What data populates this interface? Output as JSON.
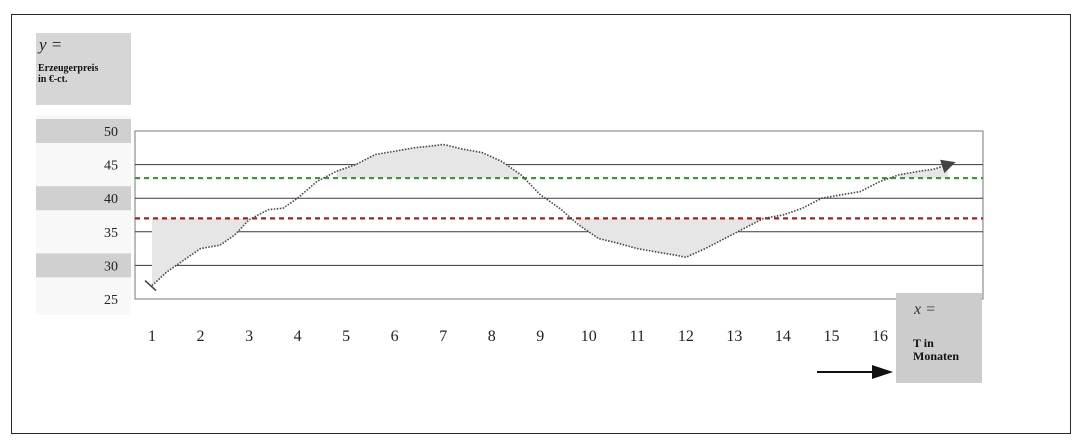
{
  "chart_data": {
    "type": "line",
    "y_label_var": "y =",
    "y_label": "Erzeugerpreis\nin €-ct.",
    "x_label_var": "x =",
    "x_label": "T  in\nMonaten",
    "yticks": [
      50,
      45,
      40,
      35,
      30,
      25
    ],
    "ylim": [
      25,
      50
    ],
    "xticks": [
      1,
      2,
      3,
      4,
      5,
      6,
      7,
      8,
      9,
      10,
      11,
      12,
      13,
      14,
      15,
      16
    ],
    "xlim": [
      1,
      17.5
    ],
    "reference_lines": [
      {
        "value": 43,
        "color": "#3a9a33"
      },
      {
        "value": 37,
        "color": "#a42020"
      }
    ],
    "grid": true,
    "series": [
      {
        "x": [
          1,
          1.3,
          1.6,
          2,
          2.4,
          2.7,
          3,
          3.4,
          3.7,
          4,
          4.4,
          4.8,
          5.2,
          5.6,
          6,
          6.4,
          6.8,
          7,
          7.4,
          7.8,
          8.2,
          8.6,
          9,
          9.4,
          9.8,
          10.2,
          10.6,
          11,
          11.4,
          11.8,
          12,
          12.4,
          12.8,
          13.2,
          13.6,
          14,
          14.4,
          14.8,
          15.2,
          15.6,
          16,
          16.4,
          16.8,
          17.1,
          17.4
        ],
        "y": [
          27,
          29,
          30.5,
          32.5,
          33,
          34.5,
          36.8,
          38.3,
          38.5,
          40,
          42.5,
          44,
          45,
          46.5,
          47,
          47.5,
          47.8,
          48,
          47.3,
          46.8,
          45.5,
          43.5,
          40.5,
          38.5,
          36,
          34,
          33.3,
          32.5,
          32,
          31.5,
          31.2,
          32.5,
          34,
          35.5,
          37,
          37.5,
          38.5,
          40,
          40.5,
          41,
          42.5,
          43.5,
          44,
          44.3,
          45
        ]
      }
    ]
  }
}
